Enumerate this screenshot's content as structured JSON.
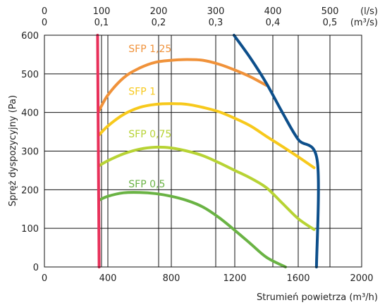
{
  "chart_data": {
    "type": "line",
    "title": "",
    "xlabel": "Strumień powietrza (m³/h)",
    "ylabel": "Spręż dyspozycyjny (Pa)",
    "xlim": [
      0,
      2000
    ],
    "ylim": [
      0,
      600
    ],
    "x_ticks": [
      "0",
      "400",
      "800",
      "1200",
      "1600",
      "2000"
    ],
    "y_ticks": [
      "0",
      "100",
      "200",
      "300",
      "400",
      "500",
      "600"
    ],
    "top_axis": {
      "unit_ls": "(l/s)",
      "unit_m3s": "(m³/s)",
      "ticks": [
        {
          "x": 0,
          "ls": "0",
          "m3s": "0"
        },
        {
          "x": 360,
          "ls": "100",
          "m3s": "0,1"
        },
        {
          "x": 720,
          "ls": "200",
          "m3s": "0,2"
        },
        {
          "x": 1080,
          "ls": "300",
          "m3s": "0,3"
        },
        {
          "x": 1440,
          "ls": "400",
          "m3s": "0,4"
        },
        {
          "x": 1800,
          "ls": "500",
          "m3s": "0,5"
        }
      ]
    },
    "grid": true,
    "series": [
      {
        "name": "SFP 1,25",
        "color": "#f0923a",
        "label_at": [
          530,
          565
        ],
        "points": [
          [
            345,
            405
          ],
          [
            400,
            445
          ],
          [
            500,
            490
          ],
          [
            600,
            515
          ],
          [
            700,
            530
          ],
          [
            800,
            535
          ],
          [
            900,
            537
          ],
          [
            1000,
            535
          ],
          [
            1100,
            525
          ],
          [
            1200,
            510
          ],
          [
            1300,
            492
          ],
          [
            1400,
            470
          ]
        ]
      },
      {
        "name": "SFP 1",
        "color": "#f7c91c",
        "label_at": [
          530,
          455
        ],
        "points": [
          [
            345,
            342
          ],
          [
            400,
            365
          ],
          [
            500,
            395
          ],
          [
            600,
            413
          ],
          [
            700,
            421
          ],
          [
            800,
            423
          ],
          [
            900,
            421
          ],
          [
            1000,
            413
          ],
          [
            1100,
            402
          ],
          [
            1200,
            385
          ],
          [
            1300,
            365
          ],
          [
            1400,
            338
          ],
          [
            1500,
            312
          ],
          [
            1600,
            285
          ],
          [
            1700,
            257
          ]
        ]
      },
      {
        "name": "SFP 0,75",
        "color": "#b7d334",
        "label_at": [
          530,
          345
        ],
        "points": [
          [
            345,
            262
          ],
          [
            400,
            275
          ],
          [
            500,
            293
          ],
          [
            600,
            305
          ],
          [
            700,
            310
          ],
          [
            800,
            308
          ],
          [
            900,
            300
          ],
          [
            1000,
            288
          ],
          [
            1100,
            270
          ],
          [
            1200,
            250
          ],
          [
            1300,
            230
          ],
          [
            1400,
            205
          ],
          [
            1500,
            165
          ],
          [
            1600,
            125
          ],
          [
            1700,
            97
          ]
        ]
      },
      {
        "name": "SFP 0,5",
        "color": "#6ab344",
        "label_at": [
          530,
          215
        ],
        "points": [
          [
            345,
            173
          ],
          [
            400,
            183
          ],
          [
            500,
            192
          ],
          [
            600,
            193
          ],
          [
            700,
            190
          ],
          [
            800,
            183
          ],
          [
            900,
            172
          ],
          [
            1000,
            155
          ],
          [
            1100,
            128
          ],
          [
            1200,
            95
          ],
          [
            1300,
            60
          ],
          [
            1400,
            25
          ],
          [
            1520,
            0
          ]
        ]
      },
      {
        "name": "",
        "color": "#e8305a",
        "label_at": null,
        "points": [
          [
            335,
            600
          ],
          [
            345,
            0
          ]
        ]
      },
      {
        "name": "",
        "color": "#0d4f8b",
        "label_at": null,
        "points": [
          [
            1195,
            600
          ],
          [
            1300,
            540
          ],
          [
            1400,
            475
          ],
          [
            1500,
            400
          ],
          [
            1600,
            330
          ],
          [
            1720,
            275
          ],
          [
            1715,
            0
          ]
        ]
      }
    ]
  }
}
